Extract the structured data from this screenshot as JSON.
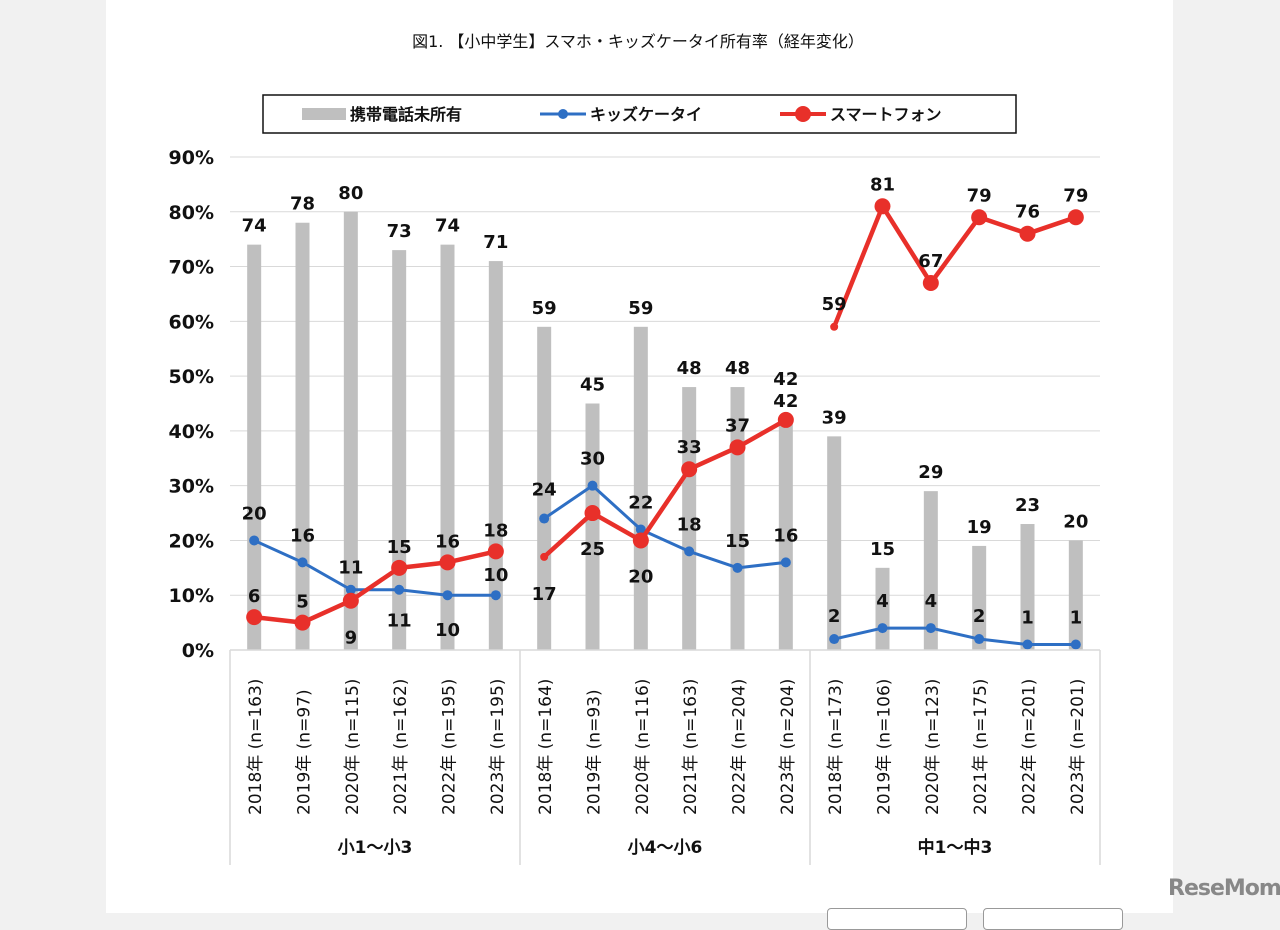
{
  "chart_data": {
    "type": "bar+line",
    "title": "図1. 【小中学生】スマホ・キッズケータイ所有率（経年変化）",
    "ylim": [
      0,
      90
    ],
    "yticks": [
      "0%",
      "10%",
      "20%",
      "30%",
      "40%",
      "50%",
      "60%",
      "70%",
      "80%",
      "90%"
    ],
    "grid": true,
    "legend_position": "top",
    "groups": [
      "小1〜小3",
      "小4〜小6",
      "中1〜中3"
    ],
    "categories": [
      "2018年 (n=163)",
      "2019年 (n=97)",
      "2020年 (n=115)",
      "2021年 (n=162)",
      "2022年 (n=195)",
      "2023年 (n=195)",
      "2018年 (n=164)",
      "2019年 (n=93)",
      "2020年 (n=116)",
      "2021年 (n=163)",
      "2022年 (n=204)",
      "2023年 (n=204)",
      "2018年 (n=173)",
      "2019年 (n=106)",
      "2020年 (n=123)",
      "2021年 (n=175)",
      "2022年 (n=201)",
      "2023年 (n=201)"
    ],
    "series": [
      {
        "name": "携帯電話未所有",
        "type": "bar",
        "color": "#bfbfbf",
        "values": [
          74,
          78,
          80,
          73,
          74,
          71,
          59,
          45,
          59,
          48,
          48,
          42,
          39,
          15,
          29,
          19,
          23,
          20
        ]
      },
      {
        "name": "キッズケータイ",
        "type": "line",
        "color": "#2e6fc4",
        "values": [
          20,
          16,
          11,
          11,
          10,
          10,
          24,
          30,
          22,
          18,
          15,
          16,
          2,
          4,
          4,
          2,
          1,
          1
        ]
      },
      {
        "name": "スマートフォン",
        "type": "line",
        "color": "#e8302a",
        "values": [
          6,
          5,
          9,
          15,
          16,
          18,
          17,
          25,
          20,
          33,
          37,
          42,
          59,
          81,
          67,
          79,
          76,
          79
        ]
      }
    ]
  },
  "watermark": "ReseMom"
}
